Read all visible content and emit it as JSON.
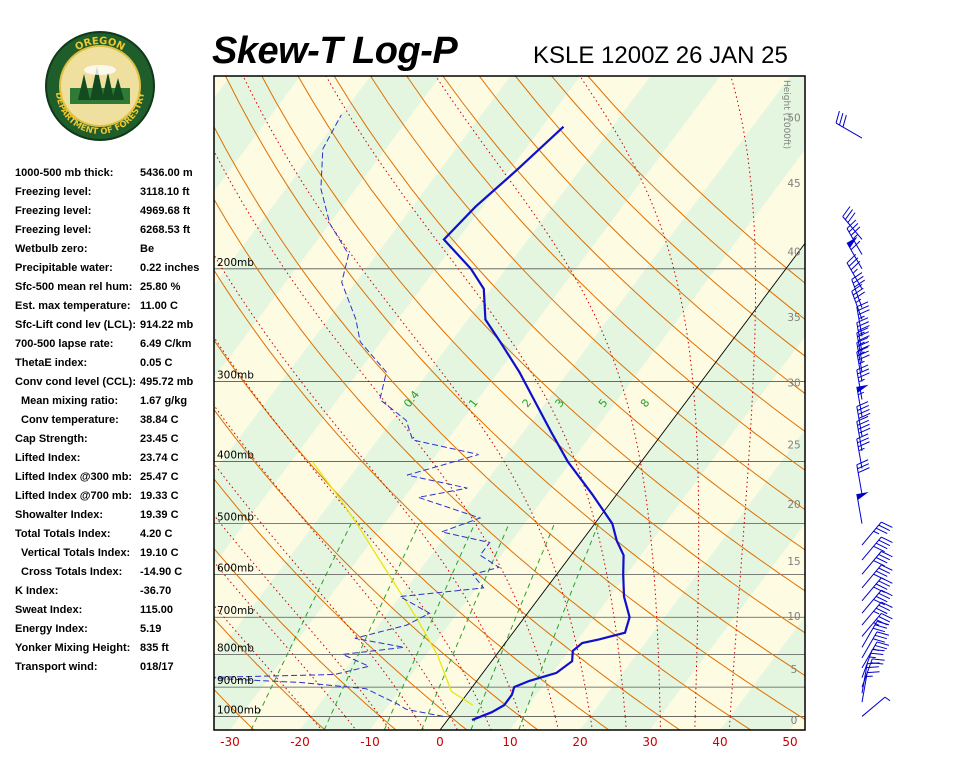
{
  "header": {
    "title": "Skew-T Log-P",
    "station": "KSLE 1200Z 26 JAN 25"
  },
  "logo": {
    "top_text": "OREGON",
    "bottom_text": "DEPARTMENT OF FORESTRY"
  },
  "stats": [
    {
      "label": "1000-500 mb thick:",
      "value": "5436.00 m",
      "indent": false
    },
    {
      "label": "Freezing level:",
      "value": "3118.10 ft",
      "indent": false
    },
    {
      "label": "Freezing level:",
      "value": "4969.68 ft",
      "indent": false
    },
    {
      "label": "Freezing level:",
      "value": "6268.53 ft",
      "indent": false
    },
    {
      "label": "Wetbulb zero:",
      "value": "Be",
      "indent": false
    },
    {
      "label": "Precipitable water:",
      "value": "0.22 inches",
      "indent": false
    },
    {
      "label": "Sfc-500 mean rel hum:",
      "value": "25.80 %",
      "indent": false
    },
    {
      "label": "Est. max temperature:",
      "value": "11.00 C",
      "indent": false
    },
    {
      "label": "Sfc-Lift cond lev (LCL):",
      "value": "914.22 mb",
      "indent": false
    },
    {
      "label": "700-500 lapse rate:",
      "value": "6.49 C/km",
      "indent": false
    },
    {
      "label": "ThetaE index:",
      "value": "0.05 C",
      "indent": false
    },
    {
      "label": "Conv cond level (CCL):",
      "value": "495.72 mb",
      "indent": false
    },
    {
      "label": "Mean mixing ratio:",
      "value": "1.67 g/kg",
      "indent": true
    },
    {
      "label": "Conv temperature:",
      "value": "38.84 C",
      "indent": true
    },
    {
      "label": "Cap Strength:",
      "value": "23.45 C",
      "indent": false
    },
    {
      "label": "Lifted Index:",
      "value": "23.74 C",
      "indent": false
    },
    {
      "label": "Lifted Index @300 mb:",
      "value": "25.47 C",
      "indent": false
    },
    {
      "label": "Lifted Index @700 mb:",
      "value": "19.33 C",
      "indent": false
    },
    {
      "label": "Showalter Index:",
      "value": "19.39 C",
      "indent": false
    },
    {
      "label": "Total Totals Index:",
      "value": "4.20 C",
      "indent": false
    },
    {
      "label": "Vertical Totals Index:",
      "value": "19.10 C",
      "indent": true
    },
    {
      "label": "Cross Totals Index:",
      "value": "-14.90 C",
      "indent": true
    },
    {
      "label": "K Index:",
      "value": "-36.70",
      "indent": false
    },
    {
      "label": "Sweat Index:",
      "value": "115.00",
      "indent": false
    },
    {
      "label": "Energy Index:",
      "value": "5.19",
      "indent": false
    },
    {
      "label": "Yonker Mixing Height:",
      "value": "835 ft",
      "indent": false
    },
    {
      "label": "Transport wind:",
      "value": "018/17",
      "indent": false
    }
  ],
  "colors": {
    "temperature": "#1010cc",
    "dewpoint": "#3030cc",
    "parcel": "#e6e600",
    "isotherm_label": "#cc0000",
    "dry_adiabat": "#e07000",
    "moist_adiabat": "#cc0000",
    "mixing_ratio": "#2aa02a",
    "height_label": "#808080",
    "wind_barb": "#0000cc"
  },
  "chart_data": {
    "type": "skew-t",
    "title": "Skew-T Log-P",
    "subtitle": "KSLE 1200Z 26 JAN 25",
    "x_ticks": [
      "-30",
      "-20",
      "-10",
      "0",
      "10",
      "20",
      "30",
      "40",
      "50"
    ],
    "x_tick_values": [
      -30,
      -20,
      -10,
      0,
      10,
      20,
      30,
      40,
      50
    ],
    "pressure_levels": [
      {
        "p": 200,
        "label": "200mb"
      },
      {
        "p": 300,
        "label": "300mb"
      },
      {
        "p": 400,
        "label": "400mb"
      },
      {
        "p": 500,
        "label": "500mb"
      },
      {
        "p": 600,
        "label": "600mb"
      },
      {
        "p": 700,
        "label": "700mb"
      },
      {
        "p": 800,
        "label": "800mb"
      },
      {
        "p": 900,
        "label": "900mb"
      },
      {
        "p": 1000,
        "label": "1000mb"
      }
    ],
    "height_axis_title": "Height (1000ft)",
    "height_labels": [
      {
        "p": 1013,
        "label": "0"
      },
      {
        "p": 843,
        "label": "5"
      },
      {
        "p": 697,
        "label": "10"
      },
      {
        "p": 572,
        "label": "15"
      },
      {
        "p": 466,
        "label": "20"
      },
      {
        "p": 376,
        "label": "25"
      },
      {
        "p": 301,
        "label": "30"
      },
      {
        "p": 238,
        "label": "35"
      },
      {
        "p": 188,
        "label": "40"
      },
      {
        "p": 147,
        "label": "45"
      },
      {
        "p": 116,
        "label": "50"
      }
    ],
    "mixing_ratio_labels": [
      "0.4",
      "1",
      "2",
      "3",
      "5",
      "8"
    ],
    "mixing_ratio_values": [
      0.4,
      1,
      2,
      3,
      5,
      8
    ],
    "temperature_profile": [
      {
        "p": 1013,
        "t": 3.5
      },
      {
        "p": 985,
        "t": 5.5
      },
      {
        "p": 960,
        "t": 6.5
      },
      {
        "p": 925,
        "t": 6.5
      },
      {
        "p": 900,
        "t": 6.0
      },
      {
        "p": 880,
        "t": 7.5
      },
      {
        "p": 855,
        "t": 10.5
      },
      {
        "p": 820,
        "t": 11.5
      },
      {
        "p": 790,
        "t": 10.5
      },
      {
        "p": 768,
        "t": 11.0
      },
      {
        "p": 758,
        "t": 13.0
      },
      {
        "p": 740,
        "t": 16.0
      },
      {
        "p": 700,
        "t": 15.0
      },
      {
        "p": 650,
        "t": 12.0
      },
      {
        "p": 600,
        "t": 9.5
      },
      {
        "p": 560,
        "t": 7.5
      },
      {
        "p": 532,
        "t": 5.0
      },
      {
        "p": 500,
        "t": 2.5
      },
      {
        "p": 450,
        "t": -3.5
      },
      {
        "p": 400,
        "t": -10.5
      },
      {
        "p": 360,
        "t": -16.0
      },
      {
        "p": 320,
        "t": -22.0
      },
      {
        "p": 290,
        "t": -27.0
      },
      {
        "p": 260,
        "t": -33.0
      },
      {
        "p": 240,
        "t": -37.5
      },
      {
        "p": 215,
        "t": -41.0
      },
      {
        "p": 200,
        "t": -45.0
      },
      {
        "p": 180,
        "t": -52.0
      },
      {
        "p": 160,
        "t": -51.0
      },
      {
        "p": 140,
        "t": -49.0
      },
      {
        "p": 120,
        "t": -47.0
      }
    ],
    "dewpoint_profile": [
      {
        "p": 1000,
        "t": -1.0
      },
      {
        "p": 975,
        "t": -7.0
      },
      {
        "p": 955,
        "t": -9.0
      },
      {
        "p": 930,
        "t": -12.0
      },
      {
        "p": 905,
        "t": -15.0
      },
      {
        "p": 885,
        "t": -25.0
      },
      {
        "p": 870,
        "t": -40.0
      },
      {
        "p": 860,
        "t": -21.0
      },
      {
        "p": 835,
        "t": -17.0
      },
      {
        "p": 800,
        "t": -22.0
      },
      {
        "p": 780,
        "t": -14.0
      },
      {
        "p": 755,
        "t": -22.0
      },
      {
        "p": 720,
        "t": -16.0
      },
      {
        "p": 690,
        "t": -14.0
      },
      {
        "p": 650,
        "t": -20.0
      },
      {
        "p": 630,
        "t": -9.0
      },
      {
        "p": 600,
        "t": -12.0
      },
      {
        "p": 585,
        "t": -9.0
      },
      {
        "p": 560,
        "t": -13.0
      },
      {
        "p": 535,
        "t": -13.0
      },
      {
        "p": 515,
        "t": -21.0
      },
      {
        "p": 490,
        "t": -17.0
      },
      {
        "p": 455,
        "t": -28.0
      },
      {
        "p": 440,
        "t": -22.0
      },
      {
        "p": 420,
        "t": -32.0
      },
      {
        "p": 405,
        "t": -28.0
      },
      {
        "p": 390,
        "t": -24.0
      },
      {
        "p": 370,
        "t": -35.0
      },
      {
        "p": 345,
        "t": -38.0
      },
      {
        "p": 320,
        "t": -44.0
      },
      {
        "p": 290,
        "t": -46.0
      },
      {
        "p": 260,
        "t": -53.0
      },
      {
        "p": 240,
        "t": -56.0
      },
      {
        "p": 210,
        "t": -62.0
      },
      {
        "p": 190,
        "t": -64.0
      },
      {
        "p": 170,
        "t": -70.0
      },
      {
        "p": 150,
        "t": -75.0
      },
      {
        "p": 130,
        "t": -79.0
      },
      {
        "p": 115,
        "t": -80.0
      }
    ],
    "parcel_path": [
      {
        "p": 960,
        "t": 2.0
      },
      {
        "p": 914,
        "t": -2.5
      },
      {
        "p": 800,
        "t": -8.5
      },
      {
        "p": 700,
        "t": -15.5
      },
      {
        "p": 600,
        "t": -24.0
      },
      {
        "p": 500,
        "t": -34.0
      },
      {
        "p": 450,
        "t": -40.0
      },
      {
        "p": 400,
        "t": -47.0
      }
    ],
    "wind_barbs": [
      {
        "p": 1000,
        "dir": 50,
        "speed": 5
      },
      {
        "p": 950,
        "dir": 10,
        "speed": 15
      },
      {
        "p": 920,
        "dir": 10,
        "speed": 20
      },
      {
        "p": 900,
        "dir": 20,
        "speed": 20
      },
      {
        "p": 870,
        "dir": 20,
        "speed": 25
      },
      {
        "p": 840,
        "dir": 30,
        "speed": 25
      },
      {
        "p": 810,
        "dir": 30,
        "speed": 30
      },
      {
        "p": 780,
        "dir": 30,
        "speed": 30
      },
      {
        "p": 750,
        "dir": 40,
        "speed": 35
      },
      {
        "p": 720,
        "dir": 40,
        "speed": 35
      },
      {
        "p": 690,
        "dir": 40,
        "speed": 40
      },
      {
        "p": 660,
        "dir": 40,
        "speed": 40
      },
      {
        "p": 630,
        "dir": 40,
        "speed": 40
      },
      {
        "p": 600,
        "dir": 40,
        "speed": 40
      },
      {
        "p": 570,
        "dir": 40,
        "speed": 40
      },
      {
        "p": 540,
        "dir": 40,
        "speed": 35
      },
      {
        "p": 500,
        "dir": 350,
        "speed": 50
      },
      {
        "p": 450,
        "dir": 350,
        "speed": 30
      },
      {
        "p": 410,
        "dir": 350,
        "speed": 35
      },
      {
        "p": 385,
        "dir": 350,
        "speed": 40
      },
      {
        "p": 365,
        "dir": 350,
        "speed": 40
      },
      {
        "p": 340,
        "dir": 350,
        "speed": 55
      },
      {
        "p": 320,
        "dir": 350,
        "speed": 35
      },
      {
        "p": 300,
        "dir": 350,
        "speed": 35
      },
      {
        "p": 290,
        "dir": 350,
        "speed": 35
      },
      {
        "p": 280,
        "dir": 350,
        "speed": 35
      },
      {
        "p": 270,
        "dir": 350,
        "speed": 35
      },
      {
        "p": 255,
        "dir": 350,
        "speed": 35
      },
      {
        "p": 240,
        "dir": 340,
        "speed": 35
      },
      {
        "p": 230,
        "dir": 340,
        "speed": 30
      },
      {
        "p": 215,
        "dir": 330,
        "speed": 35
      },
      {
        "p": 200,
        "dir": 330,
        "speed": 60
      },
      {
        "p": 190,
        "dir": 330,
        "speed": 35
      },
      {
        "p": 180,
        "dir": 320,
        "speed": 30
      },
      {
        "p": 125,
        "dir": 300,
        "speed": 30
      }
    ]
  }
}
